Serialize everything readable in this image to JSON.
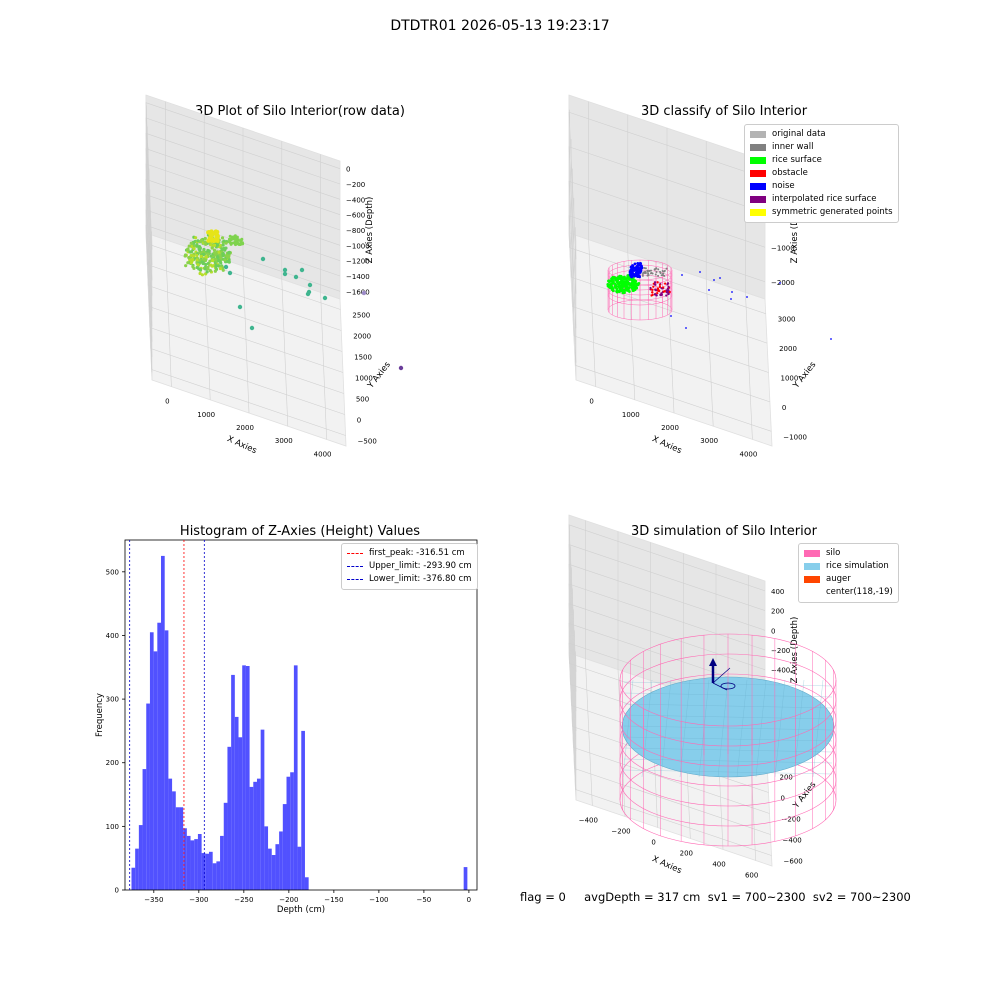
{
  "suptitle": "DTDTR01 2026-05-13 19:23:17",
  "footer": "flag = 0     avgDepth = 317 cm  sv1 = 700~2300  sv2 = 700~2300",
  "chart_data": [
    {
      "type": "scatter3d",
      "title": "3D Plot of Silo Interior(row data)",
      "xlabel": "X Axies",
      "ylabel": "Y Axies",
      "zlabel": "Z Axies (Depth)",
      "xticks": [
        "0",
        "1000",
        "2000",
        "3000",
        "4000"
      ],
      "yticks": [
        "−500",
        "0",
        "500",
        "1000",
        "1500",
        "2000",
        "2500"
      ],
      "zticks": [
        "0",
        "−200",
        "−400",
        "−600",
        "−800",
        "−1000",
        "−1200",
        "−1400",
        "−1600"
      ],
      "colormap": "viridis",
      "colors": {
        "cluster": "#8bd24a",
        "top": "#e6e418",
        "mid": "#3fb58f",
        "low": "#6a3d9a"
      }
    },
    {
      "type": "scatter3d",
      "title": "3D classify of Silo Interior",
      "xlabel": "X Axies",
      "ylabel": "Y Axies",
      "zlabel": "Z Axies (Depth)",
      "xticks": [
        "0",
        "1000",
        "2000",
        "3000",
        "4000"
      ],
      "yticks": [
        "−1000",
        "0",
        "1000",
        "2000",
        "3000"
      ],
      "zticks": [
        "1000",
        "0",
        "−1000",
        "−2000"
      ],
      "legend": [
        {
          "label": "original data",
          "color": "#b3b3b3"
        },
        {
          "label": "inner wall",
          "color": "#808080"
        },
        {
          "label": "rice surface",
          "color": "#00ff00"
        },
        {
          "label": "obstacle",
          "color": "#ff0000"
        },
        {
          "label": "noise",
          "color": "#0000ff"
        },
        {
          "label": "interpolated rice surface",
          "color": "#800080"
        },
        {
          "label": "symmetric generated points",
          "color": "#ffff00"
        }
      ],
      "colors": {
        "wire": "#ff69b4"
      }
    },
    {
      "type": "bar",
      "title": "Histogram of Z-Axies (Height) Values",
      "xlabel": "Depth (cm)",
      "ylabel": "Frequency",
      "xlim": [
        -382,
        9
      ],
      "ylim": [
        0,
        550
      ],
      "bin_width": 4.1,
      "bin_starts": [
        -378.9,
        -374.8,
        -370.7,
        -366.6,
        -362.5,
        -358.4,
        -354.3,
        -350.2,
        -346.1,
        -342.0,
        -337.9,
        -333.8,
        -329.7,
        -325.6,
        -321.5,
        -317.4,
        -313.3,
        -309.2,
        -305.1,
        -301.0,
        -296.9,
        -292.8,
        -288.7,
        -284.6,
        -280.5,
        -276.4,
        -272.3,
        -268.2,
        -264.1,
        -260.0,
        -255.9,
        -251.8,
        -247.7,
        -243.6,
        -239.5,
        -235.4,
        -231.3,
        -227.2,
        -223.1,
        -219.0,
        -214.9,
        -210.8,
        -206.7,
        -202.6,
        -198.5,
        -194.4,
        -190.3,
        -186.2,
        -182.1,
        -178.0,
        -173.9,
        -169.8,
        -165.7,
        -161.6,
        -157.5,
        -153.4,
        -149.3,
        -145.2,
        -141.1,
        -137.0,
        -132.9,
        -128.8,
        -124.7,
        -120.6,
        -116.5,
        -112.4,
        -108.3,
        -104.2,
        -100.1,
        -96.0,
        -91.9,
        -87.8,
        -83.7,
        -79.6,
        -75.5,
        -71.4,
        -67.3,
        -63.2,
        -59.1,
        -55.0,
        -50.9,
        -46.8,
        -42.7,
        -38.6,
        -34.5,
        -30.4,
        -26.3,
        -22.2,
        -18.1,
        -14.0,
        -9.9,
        -5.8,
        -1.7
      ],
      "values": [
        0,
        35,
        65,
        102,
        190,
        293,
        405,
        375,
        420,
        525,
        408,
        175,
        155,
        130,
        130,
        97,
        85,
        78,
        80,
        88,
        58,
        57,
        60,
        42,
        45,
        85,
        137,
        225,
        338,
        272,
        240,
        353,
        352,
        162,
        170,
        175,
        252,
        100,
        65,
        55,
        72,
        92,
        135,
        178,
        185,
        353,
        68,
        250,
        20,
        0,
        0,
        0,
        0,
        0,
        0,
        0,
        0,
        0,
        0,
        0,
        0,
        0,
        0,
        0,
        0,
        0,
        0,
        0,
        0,
        0,
        0,
        0,
        0,
        0,
        0,
        0,
        0,
        0,
        0,
        0,
        0,
        0,
        0,
        0,
        0,
        0,
        0,
        0,
        0,
        0,
        0,
        36
      ],
      "xticks": [
        -350,
        -300,
        -250,
        -200,
        -150,
        -100,
        -50,
        0
      ],
      "yticks": [
        0,
        100,
        200,
        300,
        400,
        500
      ],
      "vlines": [
        {
          "label": "first_peak: -316.51 cm",
          "x": -316.51,
          "color": "#ff0000"
        },
        {
          "label": "Upper_limit: -293.90 cm",
          "x": -293.9,
          "color": "#0000cc"
        },
        {
          "label": "Lower_limit: -376.80 cm",
          "x": -376.8,
          "color": "#0000cc"
        }
      ],
      "bar_color": "#4b4bff"
    },
    {
      "type": "surface3d",
      "title": "3D simulation of Silo Interior",
      "xlabel": "X Axies",
      "ylabel": "Y Axies",
      "zlabel": "Z Axies (Depth)",
      "xticks": [
        "−400",
        "−200",
        "0",
        "200",
        "400",
        "600"
      ],
      "yticks": [
        "−600",
        "−400",
        "−200",
        "0",
        "200",
        "400",
        "600"
      ],
      "zticks": [
        "400",
        "200",
        "0",
        "−200",
        "−400",
        "−600",
        "−800"
      ],
      "legend": [
        {
          "label": "silo",
          "color": "#ff69b4"
        },
        {
          "label": "rice simulation",
          "color": "#87ceeb"
        },
        {
          "label": "auger",
          "color": "#ff4500"
        },
        {
          "label": "center(118,-19)",
          "color": ""
        }
      ]
    }
  ]
}
